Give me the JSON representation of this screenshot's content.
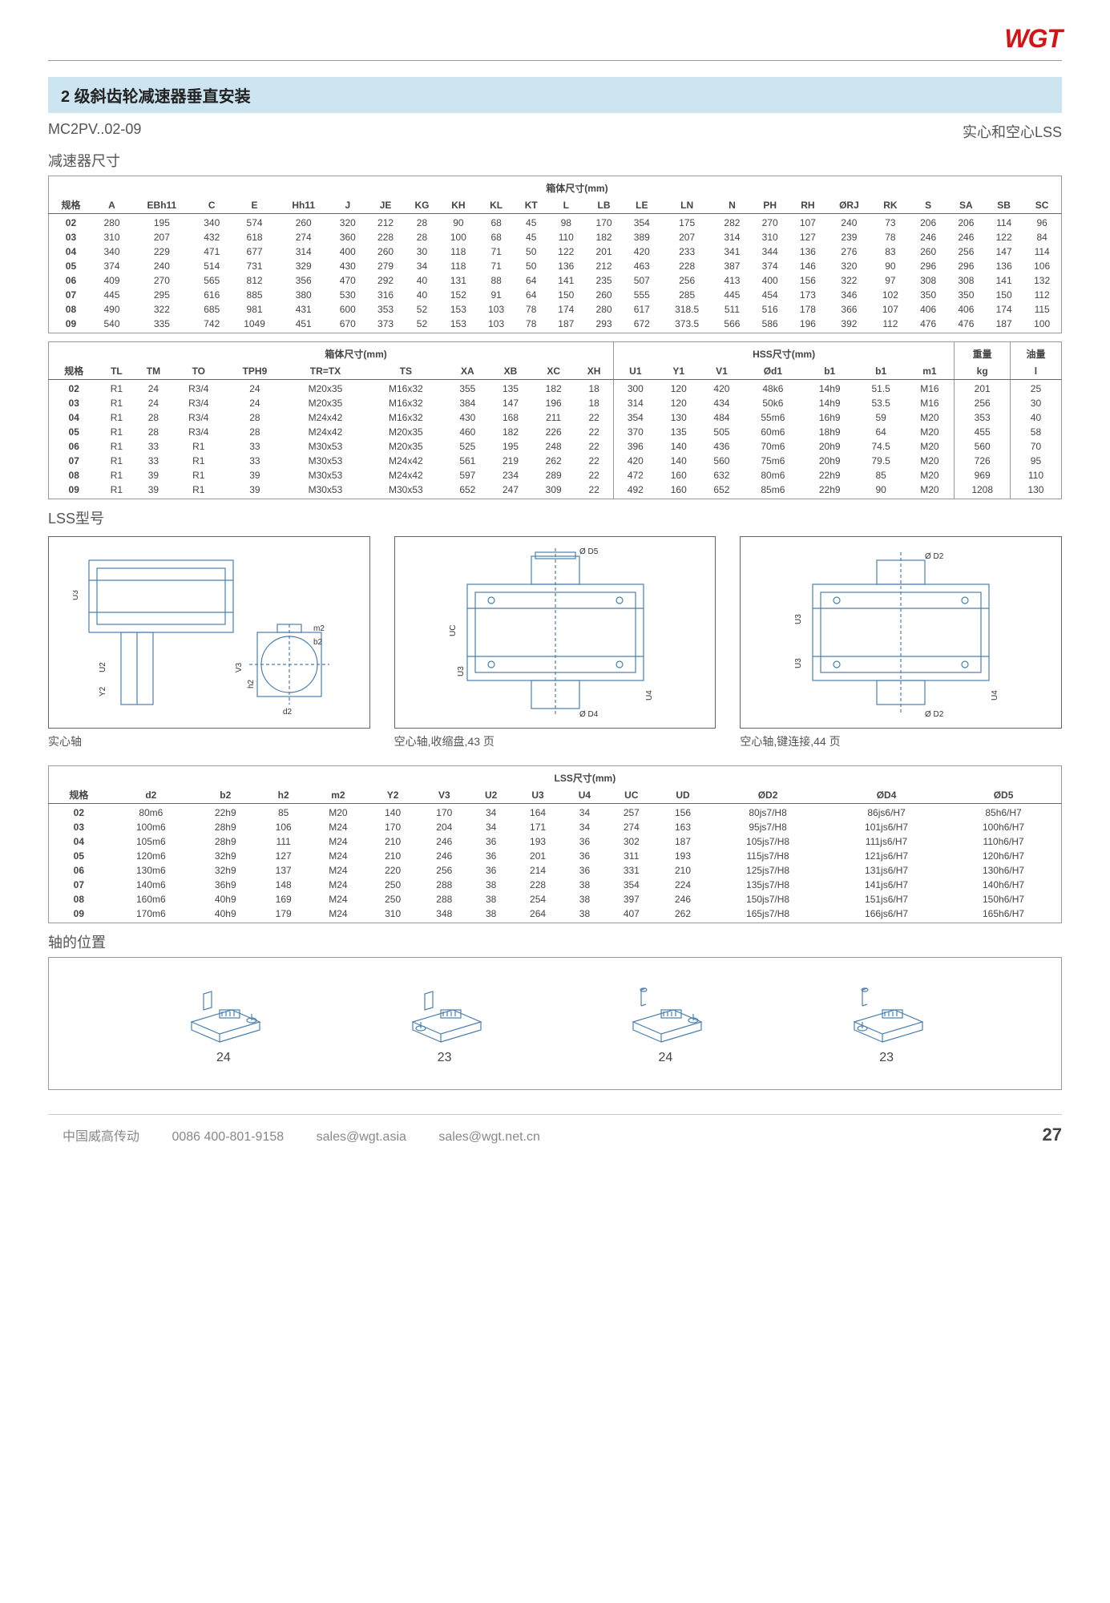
{
  "logo_text": "WGT",
  "main_title": "2 级斜齿轮减速器垂直安装",
  "model_code": "MC2PV..02-09",
  "lss_type_label": "实心和空心LSS",
  "dimensions_heading": "减速器尺寸",
  "table1": {
    "group_header": "箱体尺寸(mm)",
    "cols": [
      "规格",
      "A",
      "EBh11",
      "C",
      "E",
      "Hh11",
      "J",
      "JE",
      "KG",
      "KH",
      "KL",
      "KT",
      "L",
      "LB",
      "LE",
      "LN",
      "N",
      "PH",
      "RH",
      "ØRJ",
      "RK",
      "S",
      "SA",
      "SB",
      "SC"
    ],
    "rows": [
      [
        "02",
        "280",
        "195",
        "340",
        "574",
        "260",
        "320",
        "212",
        "28",
        "90",
        "68",
        "45",
        "98",
        "170",
        "354",
        "175",
        "282",
        "270",
        "107",
        "240",
        "73",
        "206",
        "206",
        "114",
        "96"
      ],
      [
        "03",
        "310",
        "207",
        "432",
        "618",
        "274",
        "360",
        "228",
        "28",
        "100",
        "68",
        "45",
        "110",
        "182",
        "389",
        "207",
        "314",
        "310",
        "127",
        "239",
        "78",
        "246",
        "246",
        "122",
        "84"
      ],
      [
        "04",
        "340",
        "229",
        "471",
        "677",
        "314",
        "400",
        "260",
        "30",
        "118",
        "71",
        "50",
        "122",
        "201",
        "420",
        "233",
        "341",
        "344",
        "136",
        "276",
        "83",
        "260",
        "256",
        "147",
        "114"
      ],
      [
        "05",
        "374",
        "240",
        "514",
        "731",
        "329",
        "430",
        "279",
        "34",
        "118",
        "71",
        "50",
        "136",
        "212",
        "463",
        "228",
        "387",
        "374",
        "146",
        "320",
        "90",
        "296",
        "296",
        "136",
        "106"
      ],
      [
        "06",
        "409",
        "270",
        "565",
        "812",
        "356",
        "470",
        "292",
        "40",
        "131",
        "88",
        "64",
        "141",
        "235",
        "507",
        "256",
        "413",
        "400",
        "156",
        "322",
        "97",
        "308",
        "308",
        "141",
        "132"
      ],
      [
        "07",
        "445",
        "295",
        "616",
        "885",
        "380",
        "530",
        "316",
        "40",
        "152",
        "91",
        "64",
        "150",
        "260",
        "555",
        "285",
        "445",
        "454",
        "173",
        "346",
        "102",
        "350",
        "350",
        "150",
        "112"
      ],
      [
        "08",
        "490",
        "322",
        "685",
        "981",
        "431",
        "600",
        "353",
        "52",
        "153",
        "103",
        "78",
        "174",
        "280",
        "617",
        "318.5",
        "511",
        "516",
        "178",
        "366",
        "107",
        "406",
        "406",
        "174",
        "115"
      ],
      [
        "09",
        "540",
        "335",
        "742",
        "1049",
        "451",
        "670",
        "373",
        "52",
        "153",
        "103",
        "78",
        "187",
        "293",
        "672",
        "373.5",
        "566",
        "586",
        "196",
        "392",
        "112",
        "476",
        "476",
        "187",
        "100"
      ]
    ]
  },
  "table2": {
    "group1": "箱体尺寸(mm)",
    "group2": "HSS尺寸(mm)",
    "group3": "重量",
    "group4": "油量",
    "cols": [
      "规格",
      "TL",
      "TM",
      "TO",
      "TPH9",
      "TR=TX",
      "TS",
      "XA",
      "XB",
      "XC",
      "XH",
      "U1",
      "Y1",
      "V1",
      "Ød1",
      "b1",
      "b1",
      "m1",
      "kg",
      "l"
    ],
    "rows": [
      [
        "02",
        "R1",
        "24",
        "R3/4",
        "24",
        "M20x35",
        "M16x32",
        "355",
        "135",
        "182",
        "18",
        "300",
        "120",
        "420",
        "48k6",
        "14h9",
        "51.5",
        "M16",
        "201",
        "25"
      ],
      [
        "03",
        "R1",
        "24",
        "R3/4",
        "24",
        "M20x35",
        "M16x32",
        "384",
        "147",
        "196",
        "18",
        "314",
        "120",
        "434",
        "50k6",
        "14h9",
        "53.5",
        "M16",
        "256",
        "30"
      ],
      [
        "04",
        "R1",
        "28",
        "R3/4",
        "28",
        "M24x42",
        "M16x32",
        "430",
        "168",
        "211",
        "22",
        "354",
        "130",
        "484",
        "55m6",
        "16h9",
        "59",
        "M20",
        "353",
        "40"
      ],
      [
        "05",
        "R1",
        "28",
        "R3/4",
        "28",
        "M24x42",
        "M20x35",
        "460",
        "182",
        "226",
        "22",
        "370",
        "135",
        "505",
        "60m6",
        "18h9",
        "64",
        "M20",
        "455",
        "58"
      ],
      [
        "06",
        "R1",
        "33",
        "R1",
        "33",
        "M30x53",
        "M20x35",
        "525",
        "195",
        "248",
        "22",
        "396",
        "140",
        "436",
        "70m6",
        "20h9",
        "74.5",
        "M20",
        "560",
        "70"
      ],
      [
        "07",
        "R1",
        "33",
        "R1",
        "33",
        "M30x53",
        "M24x42",
        "561",
        "219",
        "262",
        "22",
        "420",
        "140",
        "560",
        "75m6",
        "20h9",
        "79.5",
        "M20",
        "726",
        "95"
      ],
      [
        "08",
        "R1",
        "39",
        "R1",
        "39",
        "M30x53",
        "M24x42",
        "597",
        "234",
        "289",
        "22",
        "472",
        "160",
        "632",
        "80m6",
        "22h9",
        "85",
        "M20",
        "969",
        "110"
      ],
      [
        "09",
        "R1",
        "39",
        "R1",
        "39",
        "M30x53",
        "M30x53",
        "652",
        "247",
        "309",
        "22",
        "492",
        "160",
        "652",
        "85m6",
        "22h9",
        "90",
        "M20",
        "1208",
        "130"
      ]
    ]
  },
  "lss_heading": "LSS型号",
  "diagrams": {
    "captions": [
      "实心轴",
      "空心轴,收缩盘,43 页",
      "空心轴,键连接,44 页"
    ],
    "labels1": [
      "U3",
      "U2",
      "Y2",
      "V3",
      "h2",
      "d2",
      "m2",
      "b2"
    ],
    "labels2": [
      "UC",
      "U3",
      "U4",
      "Ø D5",
      "Ø D4"
    ],
    "labels3": [
      "U3",
      "U3",
      "U4",
      "Ø D2",
      "Ø D2"
    ]
  },
  "table3": {
    "group_header": "LSS尺寸(mm)",
    "cols": [
      "规格",
      "d2",
      "b2",
      "h2",
      "m2",
      "Y2",
      "V3",
      "U2",
      "U3",
      "U4",
      "UC",
      "UD",
      "ØD2",
      "ØD4",
      "ØD5"
    ],
    "rows": [
      [
        "02",
        "80m6",
        "22h9",
        "85",
        "M20",
        "140",
        "170",
        "34",
        "164",
        "34",
        "257",
        "156",
        "80js7/H8",
        "86js6/H7",
        "85h6/H7"
      ],
      [
        "03",
        "100m6",
        "28h9",
        "106",
        "M24",
        "170",
        "204",
        "34",
        "171",
        "34",
        "274",
        "163",
        "95js7/H8",
        "101js6/H7",
        "100h6/H7"
      ],
      [
        "04",
        "105m6",
        "28h9",
        "111",
        "M24",
        "210",
        "246",
        "36",
        "193",
        "36",
        "302",
        "187",
        "105js7/H8",
        "111js6/H7",
        "110h6/H7"
      ],
      [
        "05",
        "120m6",
        "32h9",
        "127",
        "M24",
        "210",
        "246",
        "36",
        "201",
        "36",
        "311",
        "193",
        "115js7/H8",
        "121js6/H7",
        "120h6/H7"
      ],
      [
        "06",
        "130m6",
        "32h9",
        "137",
        "M24",
        "220",
        "256",
        "36",
        "214",
        "36",
        "331",
        "210",
        "125js7/H8",
        "131js6/H7",
        "130h6/H7"
      ],
      [
        "07",
        "140m6",
        "36h9",
        "148",
        "M24",
        "250",
        "288",
        "38",
        "228",
        "38",
        "354",
        "224",
        "135js7/H8",
        "141js6/H7",
        "140h6/H7"
      ],
      [
        "08",
        "160m6",
        "40h9",
        "169",
        "M24",
        "250",
        "288",
        "38",
        "254",
        "38",
        "397",
        "246",
        "150js7/H8",
        "151js6/H7",
        "150h6/H7"
      ],
      [
        "09",
        "170m6",
        "40h9",
        "179",
        "M24",
        "310",
        "348",
        "38",
        "264",
        "38",
        "407",
        "262",
        "165js7/H8",
        "166js6/H7",
        "165h6/H7"
      ]
    ]
  },
  "shaft_heading": "轴的位置",
  "shaft_labels": [
    "24",
    "23",
    "24",
    "23"
  ],
  "footer": {
    "company": "中国威高传动",
    "phone": "0086 400-801-9158",
    "email1": "sales@wgt.asia",
    "email2": "sales@wgt.net.cn",
    "page": "27"
  }
}
